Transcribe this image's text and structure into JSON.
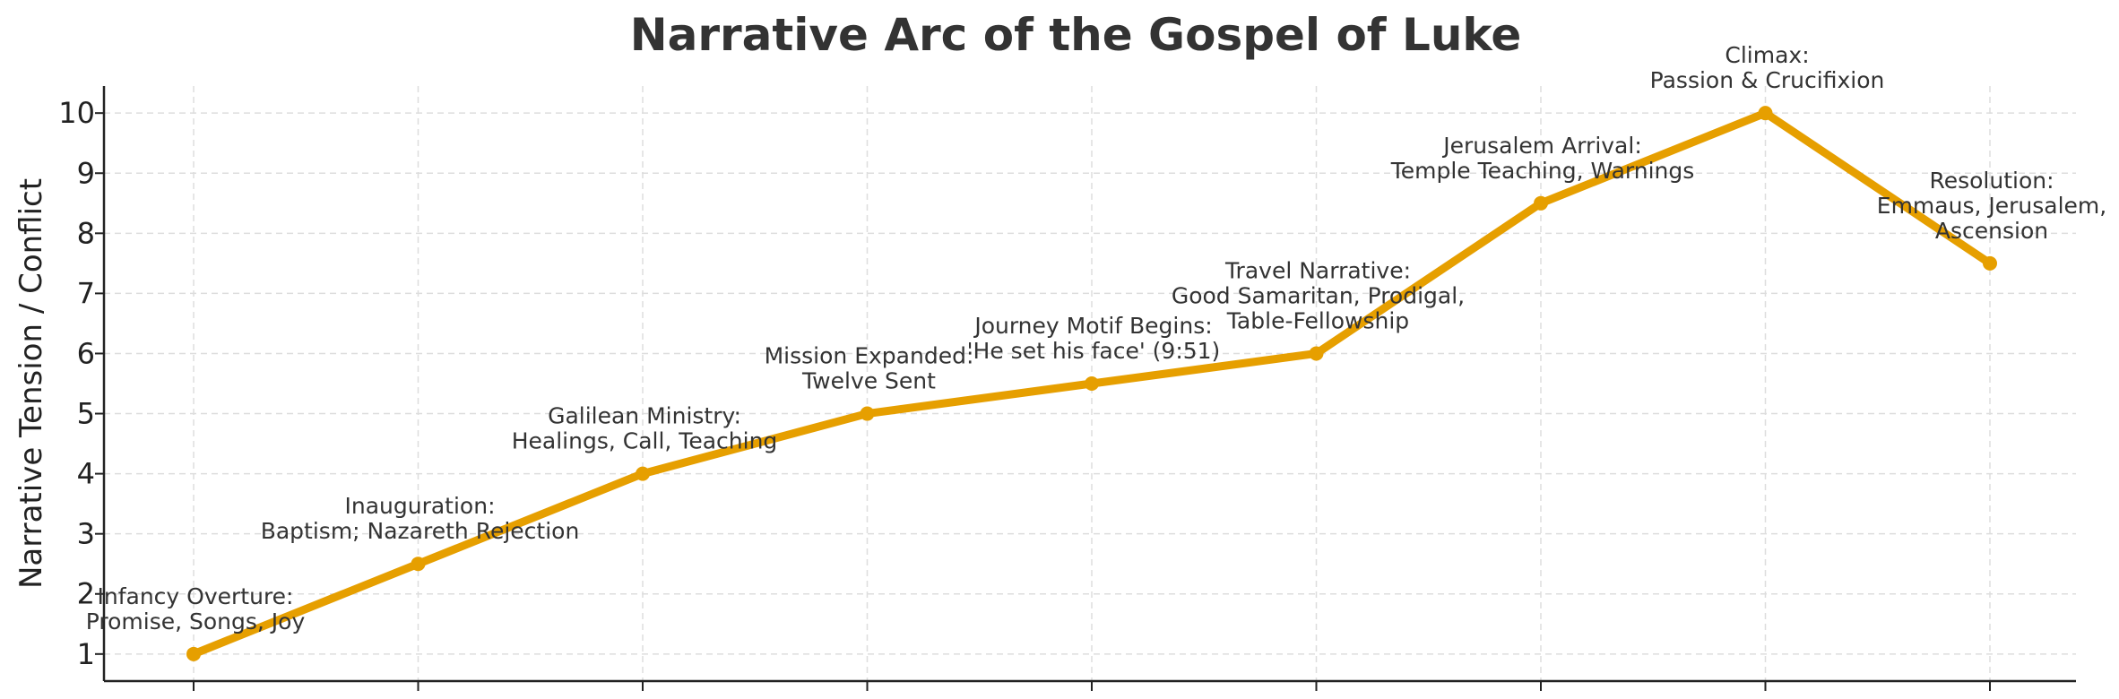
{
  "chart_data": {
    "type": "line",
    "title": "Narrative Arc of the Gospel of Luke",
    "xlabel": "",
    "ylabel": "Narrative Tension / Conflict",
    "ylim": [
      0.55,
      10.45
    ],
    "yticks": [
      1,
      2,
      3,
      4,
      5,
      6,
      7,
      8,
      9,
      10
    ],
    "grid": true,
    "color": "#E69F00",
    "x": [
      1,
      2,
      3,
      4,
      5,
      6,
      7,
      8,
      9
    ],
    "values": [
      1,
      2.5,
      4,
      5,
      5.5,
      6,
      8.5,
      10,
      7.5
    ],
    "annotations": [
      [
        "Infancy Overture:",
        "Promise, Songs, Joy"
      ],
      [
        "Inauguration:",
        "Baptism; Nazareth Rejection"
      ],
      [
        "Galilean Ministry:",
        "Healings, Call, Teaching"
      ],
      [
        "Mission Expanded:",
        "Twelve Sent"
      ],
      [
        "Journey Motif Begins:",
        "'He set his face' (9:51)"
      ],
      [
        "Travel Narrative:",
        "Good Samaritan, Prodigal,",
        "Table-Fellowship"
      ],
      [
        "Jerusalem Arrival:",
        "Temple Teaching, Warnings"
      ],
      [
        "Climax:",
        "Passion & Crucifixion"
      ],
      [
        "Resolution:",
        "Emmaus, Jerusalem,",
        "Ascension"
      ]
    ]
  }
}
